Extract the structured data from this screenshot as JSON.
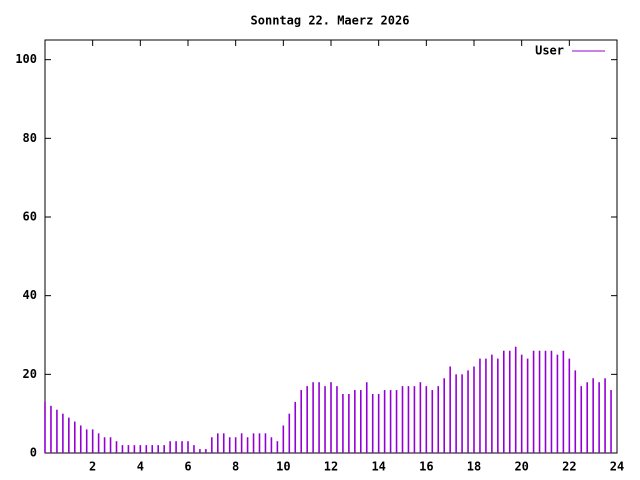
{
  "chart_data": {
    "type": "impulse",
    "title": "Sonntag 22. Maerz 2026",
    "series": [
      {
        "name": "User",
        "color": "#9400d3",
        "values": [
          13,
          12,
          11,
          10,
          9,
          8,
          7,
          6,
          6,
          5,
          4,
          4,
          3,
          2,
          2,
          2,
          2,
          2,
          2,
          2,
          2,
          3,
          3,
          3,
          3,
          2,
          1,
          1,
          4,
          5,
          5,
          4,
          4,
          5,
          4,
          5,
          5,
          5,
          4,
          3,
          7,
          10,
          13,
          16,
          17,
          18,
          18,
          17,
          18,
          17,
          15,
          15,
          16,
          16,
          18,
          15,
          15,
          16,
          16,
          16,
          17,
          17,
          17,
          18,
          17,
          16,
          17,
          19,
          22,
          20,
          20,
          21,
          22,
          24,
          24,
          25,
          24,
          26,
          26,
          27,
          25,
          24,
          26,
          26,
          26,
          26,
          25,
          26,
          24,
          21,
          17,
          18,
          19,
          18,
          19,
          16
        ]
      }
    ],
    "x": [
      0,
      0.25,
      0.5,
      0.75,
      1,
      1.25,
      1.5,
      1.75,
      2,
      2.25,
      2.5,
      2.75,
      3,
      3.25,
      3.5,
      3.75,
      4,
      4.25,
      4.5,
      4.75,
      5,
      5.25,
      5.5,
      5.75,
      6,
      6.25,
      6.5,
      6.75,
      7,
      7.25,
      7.5,
      7.75,
      8,
      8.25,
      8.5,
      8.75,
      9,
      9.25,
      9.5,
      9.75,
      10,
      10.25,
      10.5,
      10.75,
      11,
      11.25,
      11.5,
      11.75,
      12,
      12.25,
      12.5,
      12.75,
      13,
      13.25,
      13.5,
      13.75,
      14,
      14.25,
      14.5,
      14.75,
      15,
      15.25,
      15.5,
      15.75,
      16,
      16.25,
      16.5,
      16.75,
      17,
      17.25,
      17.5,
      17.75,
      18,
      18.25,
      18.5,
      18.75,
      19,
      19.25,
      19.5,
      19.75,
      20,
      20.25,
      20.5,
      20.75,
      21,
      21.25,
      21.5,
      21.75,
      22,
      22.25,
      22.5,
      22.75,
      23,
      23.25,
      23.5,
      23.75
    ],
    "xlim": [
      0,
      24
    ],
    "xticks": [
      2,
      4,
      6,
      8,
      10,
      12,
      14,
      16,
      18,
      20,
      22,
      24
    ],
    "ylim": [
      0,
      105
    ],
    "yticks": [
      0,
      20,
      40,
      60,
      80,
      100
    ],
    "legend": "top-right"
  }
}
